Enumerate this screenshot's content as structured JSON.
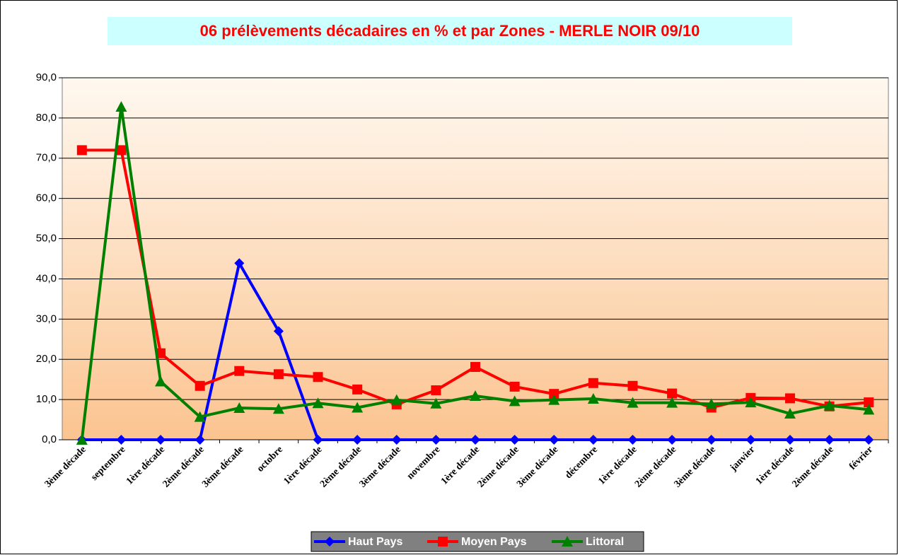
{
  "chart_data": {
    "type": "line",
    "title": "06 prélèvements décadaires en % et par Zones - MERLE NOIR 09/10",
    "categories": [
      "3ème décade",
      "septembre",
      "1ère décade",
      "2ème décade",
      "3ème décade",
      "octobre",
      "1ère décade",
      "2ème décade",
      "3ème décade",
      "novembre",
      "1ère décade",
      "2ème décade",
      "3ème décade",
      "décembre",
      "1ère décade",
      "2ème décade",
      "3ème décade",
      "janvier",
      "1ère décade",
      "2ème décade",
      "février"
    ],
    "series": [
      {
        "name": "Haut Pays",
        "color": "#0000ff",
        "marker": "diamond",
        "values": [
          0,
          0,
          0,
          0,
          43.9,
          27,
          0,
          0,
          0,
          0,
          0,
          0,
          0,
          0,
          0,
          0,
          0,
          0,
          0,
          0,
          0
        ]
      },
      {
        "name": "Moyen Pays",
        "color": "#ff0000",
        "marker": "square",
        "values": [
          72,
          72,
          21.5,
          13.4,
          17.1,
          16.3,
          15.6,
          12.5,
          8.8,
          12.3,
          18.1,
          13.2,
          11.4,
          14.1,
          13.4,
          11.5,
          8.0,
          10.4,
          10.3,
          8.3,
          9.3
        ]
      },
      {
        "name": "Littoral",
        "color": "#008000",
        "marker": "triangle",
        "values": [
          0,
          82.8,
          14.5,
          5.7,
          7.9,
          7.7,
          9.1,
          8.0,
          9.9,
          9.0,
          10.9,
          9.6,
          9.9,
          10.2,
          9.2,
          9.2,
          8.9,
          9.3,
          6.5,
          8.5,
          7.5
        ]
      }
    ],
    "ylim": [
      0,
      90
    ],
    "yticks": [
      {
        "value": 0,
        "label": "0,0"
      },
      {
        "value": 10,
        "label": "10,0"
      },
      {
        "value": 20,
        "label": "20,0"
      },
      {
        "value": 30,
        "label": "30,0"
      },
      {
        "value": 40,
        "label": "40,0"
      },
      {
        "value": 50,
        "label": "50,0"
      },
      {
        "value": 60,
        "label": "60,0"
      },
      {
        "value": 70,
        "label": "70,0"
      },
      {
        "value": 80,
        "label": "80,0"
      },
      {
        "value": 90,
        "label": "90,0"
      }
    ],
    "grid": true,
    "legend": "bottom"
  }
}
